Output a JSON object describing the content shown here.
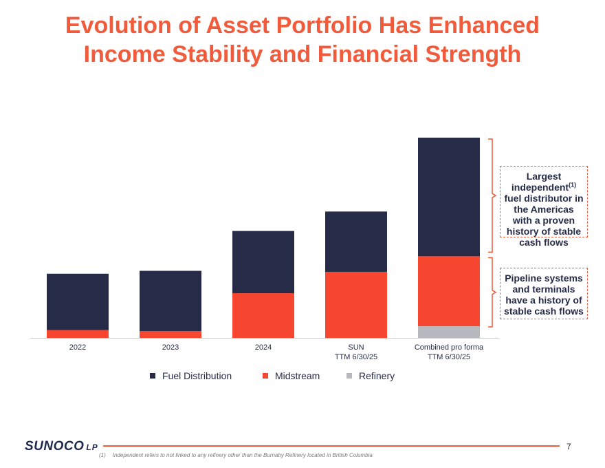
{
  "title": {
    "line1": "Evolution of Asset Portfolio Has Enhanced",
    "line2": "Income Stability and Financial Strength"
  },
  "chart_data": {
    "type": "bar",
    "stacked": true,
    "categories": [
      [
        "2022"
      ],
      [
        "2023"
      ],
      [
        "2024"
      ],
      [
        "SUN",
        "TTM 6/30/25"
      ],
      [
        "Combined pro forma",
        "TTM 6/30/25"
      ]
    ],
    "series": [
      {
        "name": "Refinery",
        "color": "#b8b9be",
        "values": [
          0,
          0,
          0,
          0,
          6
        ]
      },
      {
        "name": "Midstream",
        "color": "#f6462f",
        "values": [
          4,
          3.5,
          23,
          34,
          36
        ]
      },
      {
        "name": "Fuel Distribution",
        "color": "#262c47",
        "values": [
          29,
          31,
          32,
          31,
          61
        ]
      }
    ],
    "legend_order": [
      "Fuel Distribution",
      "Midstream",
      "Refinery"
    ],
    "legend_position": "bottom-center",
    "ylim": [
      0,
      103
    ],
    "grid": false,
    "y_axis_visible": false
  },
  "callouts": {
    "upper": {
      "pre": "Largest independent",
      "sup": "(1)",
      "post": " fuel distributor in the Americas with a proven history of stable cash flows"
    },
    "lower": {
      "text": "Pipeline systems and terminals have a history of stable cash flows"
    }
  },
  "footer": {
    "logo": "SUNOCO",
    "logo_suffix": "LP",
    "page_number": "7",
    "footnote_mark": "(1)",
    "footnote_text": "Independent refers to not linked to any refinery other than the Burnaby Refinery located in British Columbia"
  },
  "colors": {
    "accent": "#f15a3b",
    "navy": "#262c47"
  }
}
